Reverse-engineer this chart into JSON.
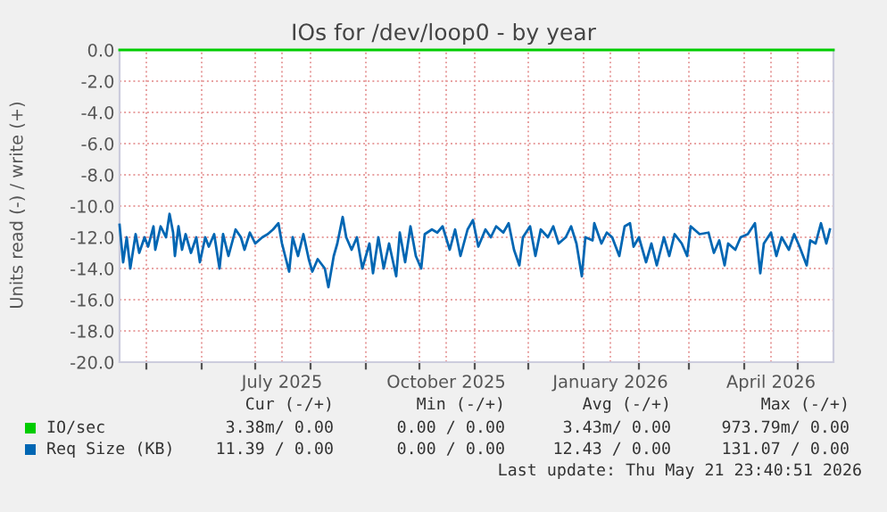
{
  "chart_data": {
    "type": "line",
    "title": "IOs for /dev/loop0 - by year",
    "ylabel": "Units read (-) / write (+)",
    "xlim": [
      "2025-04-16",
      "2026-05-21"
    ],
    "xticks": [
      {
        "value": "2025-05-01",
        "label": null
      },
      {
        "value": "2025-06-01",
        "label": null
      },
      {
        "value": "2025-07-01",
        "label": null
      },
      {
        "value": "2025-07-16",
        "label": "July 2025"
      },
      {
        "value": "2025-08-01",
        "label": null
      },
      {
        "value": "2025-09-01",
        "label": null
      },
      {
        "value": "2025-10-01",
        "label": null
      },
      {
        "value": "2025-10-16",
        "label": "October 2025"
      },
      {
        "value": "2025-11-01",
        "label": null
      },
      {
        "value": "2025-12-01",
        "label": null
      },
      {
        "value": "2026-01-01",
        "label": null
      },
      {
        "value": "2026-01-16",
        "label": "January 2026"
      },
      {
        "value": "2026-02-01",
        "label": null
      },
      {
        "value": "2026-03-01",
        "label": null
      },
      {
        "value": "2026-04-01",
        "label": null
      },
      {
        "value": "2026-04-16",
        "label": "April 2026"
      },
      {
        "value": "2026-05-01",
        "label": null
      }
    ],
    "ylim": [
      -20,
      0
    ],
    "yticks": [
      {
        "value": 0,
        "label": "0.0"
      },
      {
        "value": -2,
        "label": "-2.0"
      },
      {
        "value": -4,
        "label": "-4.0"
      },
      {
        "value": -6,
        "label": "-6.0"
      },
      {
        "value": -8,
        "label": "-8.0"
      },
      {
        "value": -10,
        "label": "-10.0"
      },
      {
        "value": -12,
        "label": "-12.0"
      },
      {
        "value": -14,
        "label": "-14.0"
      },
      {
        "value": -16,
        "label": "-16.0"
      },
      {
        "value": -18,
        "label": "-18.0"
      },
      {
        "value": -20,
        "label": "-20.0"
      }
    ],
    "grid": true,
    "legend": "bottom left",
    "series": [
      {
        "name": "IO/sec",
        "color": "#00cc00",
        "x": [
          "2025-04-16",
          "2026-05-21"
        ],
        "values": [
          0,
          0
        ]
      },
      {
        "name": "Req Size (KB)",
        "color": "#0066b3",
        "x": [
          "2025-04-16",
          "2025-04-18",
          "2025-04-20",
          "2025-04-22",
          "2025-04-25",
          "2025-04-27",
          "2025-04-30",
          "2025-05-02",
          "2025-05-05",
          "2025-05-06",
          "2025-05-09",
          "2025-05-12",
          "2025-05-14",
          "2025-05-16",
          "2025-05-17",
          "2025-05-19",
          "2025-05-21",
          "2025-05-23",
          "2025-05-26",
          "2025-05-29",
          "2025-05-31",
          "2025-06-03",
          "2025-06-05",
          "2025-06-08",
          "2025-06-11",
          "2025-06-13",
          "2025-06-16",
          "2025-06-20",
          "2025-06-23",
          "2025-06-25",
          "2025-06-28",
          "2025-07-01",
          "2025-07-05",
          "2025-07-08",
          "2025-07-11",
          "2025-07-14",
          "2025-07-16",
          "2025-07-20",
          "2025-07-22",
          "2025-07-25",
          "2025-07-28",
          "2025-07-31",
          "2025-08-02",
          "2025-08-05",
          "2025-08-09",
          "2025-08-11",
          "2025-08-14",
          "2025-08-16",
          "2025-08-19",
          "2025-08-21",
          "2025-08-24",
          "2025-08-27",
          "2025-08-30",
          "2025-09-03",
          "2025-09-05",
          "2025-09-08",
          "2025-09-11",
          "2025-09-14",
          "2025-09-18",
          "2025-09-20",
          "2025-09-23",
          "2025-09-26",
          "2025-09-29",
          "2025-10-02",
          "2025-10-04",
          "2025-10-08",
          "2025-10-11",
          "2025-10-14",
          "2025-10-18",
          "2025-10-21",
          "2025-10-24",
          "2025-10-28",
          "2025-10-31",
          "2025-11-03",
          "2025-11-07",
          "2025-11-10",
          "2025-11-13",
          "2025-11-17",
          "2025-11-20",
          "2025-11-23",
          "2025-11-26",
          "2025-11-28",
          "2025-12-02",
          "2025-12-05",
          "2025-12-08",
          "2025-12-12",
          "2025-12-15",
          "2025-12-18",
          "2025-12-22",
          "2025-12-25",
          "2025-12-28",
          "2025-12-31",
          "2026-01-02",
          "2026-01-06",
          "2026-01-07",
          "2026-01-11",
          "2026-01-14",
          "2026-01-17",
          "2026-01-21",
          "2026-01-24",
          "2026-01-27",
          "2026-01-29",
          "2026-02-01",
          "2026-02-05",
          "2026-02-08",
          "2026-02-11",
          "2026-02-15",
          "2026-02-18",
          "2026-02-21",
          "2026-02-25",
          "2026-02-28",
          "2026-03-02",
          "2026-03-07",
          "2026-03-12",
          "2026-03-15",
          "2026-03-18",
          "2026-03-21",
          "2026-03-23",
          "2026-03-27",
          "2026-03-30",
          "2026-04-03",
          "2026-04-07",
          "2026-04-10",
          "2026-04-12",
          "2026-04-16",
          "2026-04-19",
          "2026-04-22",
          "2026-04-26",
          "2026-04-29",
          "2026-05-02",
          "2026-05-06",
          "2026-05-08",
          "2026-05-11",
          "2026-05-14",
          "2026-05-17",
          "2026-05-19"
        ],
        "values": [
          -11.2,
          -13.6,
          -12.0,
          -14.0,
          -11.8,
          -13.0,
          -12.0,
          -12.6,
          -11.3,
          -12.8,
          -11.3,
          -12.0,
          -10.5,
          -11.7,
          -13.2,
          -11.3,
          -12.8,
          -11.8,
          -13.0,
          -12.0,
          -13.6,
          -12.0,
          -12.6,
          -11.8,
          -14.0,
          -11.8,
          -13.2,
          -11.5,
          -12.0,
          -12.8,
          -11.7,
          -12.4,
          -12.0,
          -11.8,
          -11.5,
          -11.1,
          -12.4,
          -14.2,
          -12.0,
          -13.2,
          -11.8,
          -13.4,
          -14.2,
          -13.4,
          -14.0,
          -15.2,
          -13.2,
          -12.4,
          -10.7,
          -12.0,
          -12.8,
          -12.0,
          -14.0,
          -12.4,
          -14.3,
          -12.0,
          -14.0,
          -12.4,
          -14.5,
          -11.7,
          -13.6,
          -11.3,
          -13.2,
          -14.0,
          -11.8,
          -11.5,
          -11.7,
          -11.3,
          -12.8,
          -11.5,
          -13.2,
          -11.5,
          -10.9,
          -12.6,
          -11.5,
          -12.0,
          -11.3,
          -11.7,
          -11.1,
          -12.8,
          -13.8,
          -12.0,
          -11.3,
          -13.2,
          -11.5,
          -12.0,
          -11.3,
          -12.4,
          -12.0,
          -11.3,
          -12.4,
          -14.5,
          -12.0,
          -12.2,
          -11.1,
          -12.4,
          -11.7,
          -12.0,
          -13.2,
          -11.3,
          -11.1,
          -12.6,
          -12.0,
          -13.6,
          -12.4,
          -13.8,
          -12.0,
          -13.2,
          -11.8,
          -12.4,
          -13.2,
          -11.3,
          -11.8,
          -11.7,
          -13.0,
          -12.2,
          -13.8,
          -12.4,
          -12.8,
          -12.0,
          -11.8,
          -11.1,
          -14.3,
          -12.4,
          -11.7,
          -13.2,
          -12.0,
          -12.8,
          -11.8,
          -12.6,
          -13.8,
          -12.2,
          -12.4,
          -11.1,
          -12.4,
          -11.5
        ]
      }
    ],
    "annotations": [
      "Cur (-/+)",
      "Min (-/+)",
      "Avg (-/+)",
      "Max (-/+)",
      "3.38m/ 0.00",
      "0.00 / 0.00",
      "3.43m/ 0.00",
      "973.79m/ 0.00",
      "11.39 / 0.00",
      "0.00 / 0.00",
      "12.43 / 0.00",
      "131.07 / 0.00",
      "Last update: Thu May 21 23:40:51 2026"
    ]
  }
}
